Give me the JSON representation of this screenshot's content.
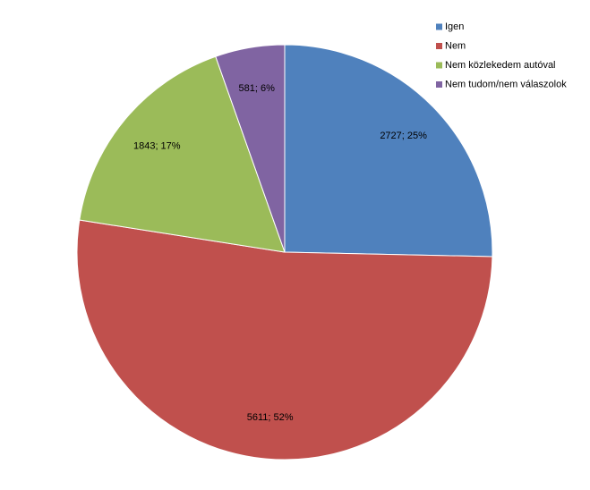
{
  "chart_data": {
    "type": "pie",
    "categories": [
      "Igen",
      "Nem",
      "Nem közlekedem autóval",
      "Nem tudom/nem válaszolok"
    ],
    "values": [
      2727,
      5611,
      1843,
      581
    ],
    "value_labels": [
      "2727; 25%",
      "5611; 52%",
      "1843; 17%",
      "581; 6%"
    ],
    "colors": [
      "#4f81bd",
      "#c0504d",
      "#9bbb59",
      "#8064a2"
    ],
    "legend": "top-right"
  }
}
